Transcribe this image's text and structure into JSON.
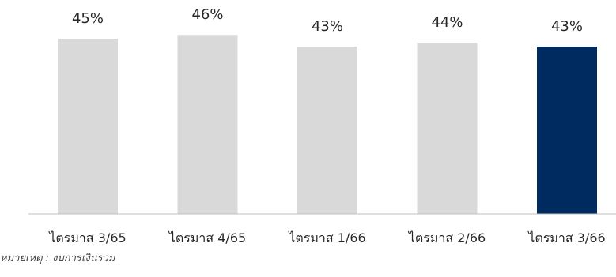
{
  "chart_data": {
    "type": "bar",
    "categories": [
      "ไตรมาส 3/65",
      "ไตรมาส 4/65",
      "ไตรมาส 1/66",
      "ไตรมาส 2/66",
      "ไตรมาส 3/66"
    ],
    "values": [
      45,
      46,
      43,
      44,
      43
    ],
    "data_labels": [
      "45%",
      "46%",
      "43%",
      "44%",
      "43%"
    ],
    "unit": "%",
    "ylim": [
      0,
      50
    ],
    "grid": false,
    "legend": "none",
    "highlight_index": 4,
    "colors": {
      "bar": "#d9d9d9",
      "highlight": "#002b60",
      "axis": "#bfbfbf",
      "text": "#262626"
    }
  },
  "note": "หมายเหตุ : งบการเงินรวม"
}
